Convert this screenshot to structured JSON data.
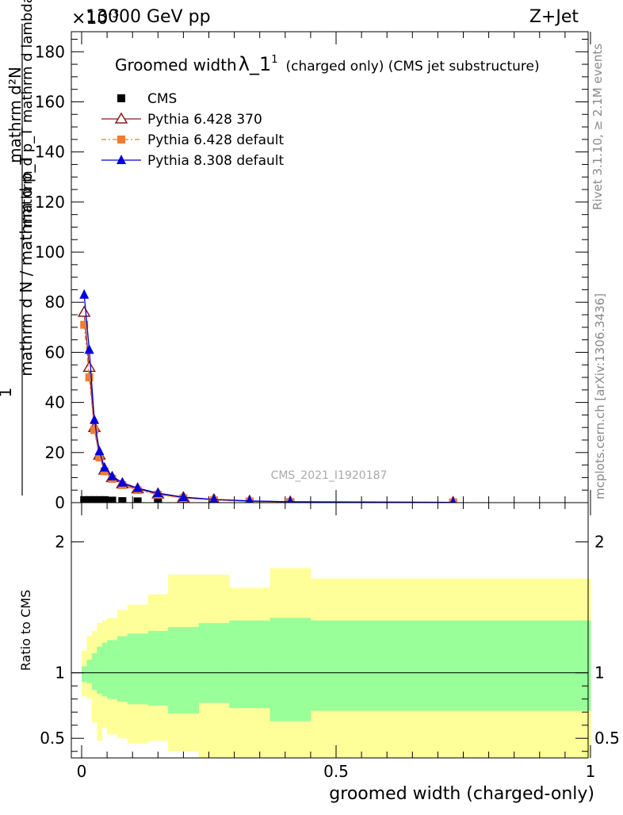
{
  "header": {
    "energy": "13000 GeV pp",
    "process": "Z+Jet",
    "exponent_marker": "×10",
    "exponent_power": "-3"
  },
  "side_labels": {
    "rivet": "Rivet 3.1.10, ≥ 2.1M events",
    "mcplots": "mcplots.cern.ch [arXiv:1306.3436]"
  },
  "watermark": "CMS_2021_I1920187",
  "chart_data": [
    {
      "type": "line",
      "title_main": "Groomed width",
      "title_lambda": "λ_1",
      "title_superscript": "1",
      "title_rest": "(charged only) (CMS jet substructure)",
      "xlabel": "",
      "ylabel_numerator": "mathrm d²N",
      "ylabel_numerator_sub": "mathrm d p_T mathrm d lambda",
      "ylabel_prefix": "1",
      "ylabel_denominator": "mathrm d N / mathrm d p_T",
      "xlim": [
        0,
        1
      ],
      "ylim": [
        0,
        188
      ],
      "yticks": [
        0,
        20,
        40,
        60,
        80,
        100,
        120,
        140,
        160,
        180
      ],
      "legend_position": "top-left",
      "series": [
        {
          "name": "CMS",
          "color": "#000000",
          "marker": "square",
          "x": [
            0.005,
            0.015,
            0.025,
            0.035,
            0.045,
            0.06,
            0.08,
            0.11,
            0.15,
            0.2,
            0.26,
            0.33,
            0.41,
            0.73
          ],
          "y": [
            1,
            1,
            1,
            1,
            1,
            0.8,
            0.6,
            0.5,
            0.4,
            0.3,
            0.2,
            0.15,
            0.1,
            0.05
          ]
        },
        {
          "name": "Pythia 6.428 370",
          "color": "#8b1a1a",
          "marker": "open-triangle",
          "x": [
            0.005,
            0.015,
            0.025,
            0.035,
            0.045,
            0.06,
            0.08,
            0.11,
            0.15,
            0.2,
            0.26,
            0.33,
            0.41,
            0.73
          ],
          "y": [
            76,
            54,
            30,
            19,
            13,
            10,
            7.5,
            5.5,
            3.5,
            2,
            1.2,
            0.6,
            0.3,
            0.1
          ]
        },
        {
          "name": "Pythia 6.428 default",
          "color": "#ee7d33",
          "marker": "square",
          "x": [
            0.005,
            0.015,
            0.025,
            0.035,
            0.045,
            0.06,
            0.08,
            0.11,
            0.15,
            0.2,
            0.26,
            0.33,
            0.41,
            0.73
          ],
          "y": [
            71,
            50,
            29,
            18,
            12.5,
            9.5,
            7,
            5,
            3.2,
            1.8,
            1,
            0.5,
            0.25,
            0.08
          ]
        },
        {
          "name": "Pythia 8.308 default",
          "color": "#0000dd",
          "marker": "filled-triangle",
          "x": [
            0.005,
            0.015,
            0.025,
            0.035,
            0.045,
            0.06,
            0.08,
            0.11,
            0.15,
            0.2,
            0.26,
            0.33,
            0.41,
            0.73
          ],
          "y": [
            83,
            61,
            33,
            20.5,
            14,
            10.5,
            8,
            5.8,
            3.8,
            2.2,
            1.3,
            0.7,
            0.35,
            0.12
          ]
        }
      ]
    },
    {
      "type": "area",
      "xlabel": "groomed width (charged-only)",
      "ylabel": "Ratio to CMS",
      "xlim": [
        0,
        1
      ],
      "ylim": [
        0.35,
        2.3
      ],
      "yticks": [
        0.5,
        1,
        2
      ],
      "xticks": [
        0,
        0.5,
        1
      ],
      "reference_line": 1,
      "bin_edges": [
        0,
        0.01,
        0.02,
        0.03,
        0.04,
        0.05,
        0.07,
        0.09,
        0.13,
        0.17,
        0.23,
        0.29,
        0.37,
        0.45,
        1.0
      ],
      "outer_band_low": [
        0.82,
        0.8,
        0.62,
        0.48,
        0.58,
        0.53,
        0.5,
        0.46,
        0.48,
        0.4,
        0.35,
        0.35,
        0.35,
        0.35
      ],
      "outer_band_high": [
        1.17,
        1.28,
        1.32,
        1.38,
        1.4,
        1.42,
        1.48,
        1.52,
        1.6,
        1.75,
        1.75,
        1.65,
        1.8,
        1.72
      ],
      "inner_band_low": [
        0.93,
        0.92,
        0.87,
        0.84,
        0.82,
        0.8,
        0.78,
        0.76,
        0.75,
        0.69,
        0.77,
        0.73,
        0.63,
        0.71
      ],
      "inner_band_high": [
        1.05,
        1.1,
        1.15,
        1.2,
        1.23,
        1.25,
        1.28,
        1.3,
        1.32,
        1.35,
        1.38,
        1.4,
        1.42,
        1.4
      ],
      "outer_color": "#ffff99",
      "inner_color": "#99ff99"
    }
  ]
}
